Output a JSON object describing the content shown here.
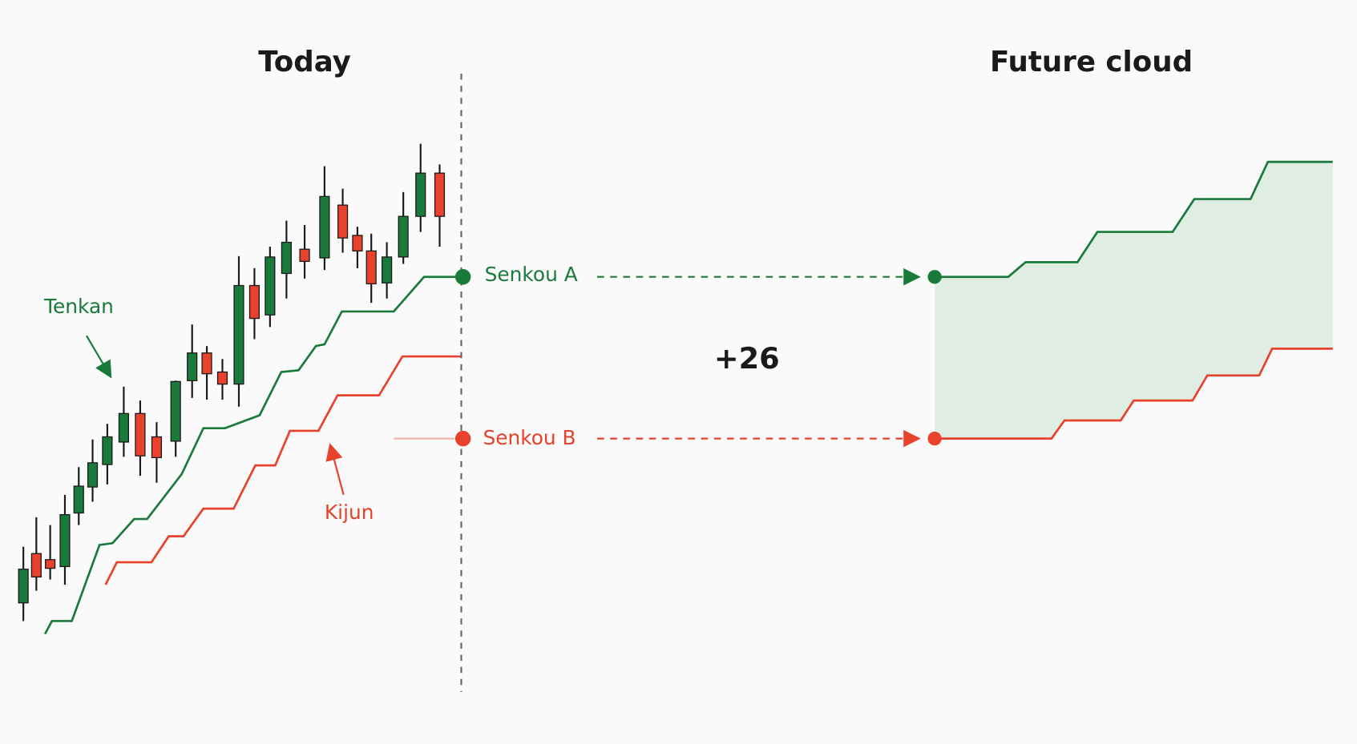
{
  "header": {
    "left_title": "Today",
    "right_title": "Future cloud"
  },
  "labels": {
    "tenkan": "Tenkan",
    "kijun": "Kijun",
    "senkou_a": "Senkou A",
    "senkou_b": "Senkou B",
    "shift": "+26"
  }
}
